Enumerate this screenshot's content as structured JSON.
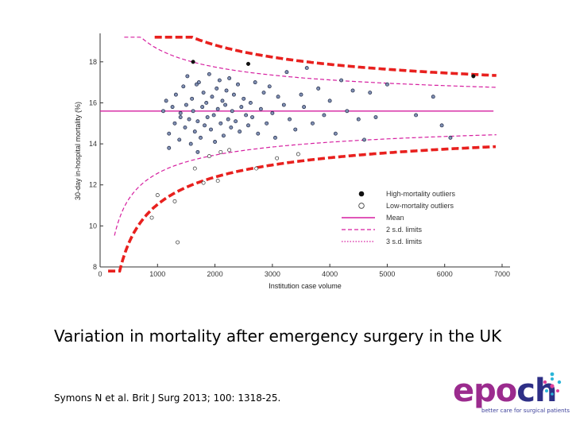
{
  "slide": {
    "title": "Variation in mortality after emergency surgery in the UK",
    "citation": "Symons N et al. Brit J Surg 2013; 100: 1318-25."
  },
  "logo": {
    "word_part1": "ep",
    "word_part2": "o",
    "word_part3": "ch",
    "tagline": "better care for surgical patients",
    "colors": {
      "purple": "#9b2b8e",
      "navy": "#2e2f86",
      "teal": "#2bb5d8",
      "pink": "#e0409a"
    }
  },
  "chart_data": {
    "type": "scatter",
    "title": "",
    "xlabel": "Institution case volume",
    "ylabel": "30-day in-hospital mortality (%)",
    "xlim": [
      0,
      7000
    ],
    "ylim": [
      8,
      19
    ],
    "xticks": [
      "0",
      "1000",
      "2000",
      "3000",
      "4000",
      "5000",
      "6000",
      "7000"
    ],
    "yticks": [
      "8",
      "10",
      "12",
      "14",
      "16",
      "18"
    ],
    "colors": {
      "mean": "#d61fa0",
      "limit": "#d61fa0",
      "overlay": "#e8201e",
      "point_fill": "#8090b4",
      "point_stroke": "#1f2844"
    },
    "mean": 15.6,
    "legend": {
      "position": "bottom-right",
      "items": [
        "High-mortality outliers",
        "Low-mortality outliers",
        "Mean",
        "2 s.d. limits",
        "3 s.d. limits"
      ]
    },
    "high_outliers": [
      {
        "x": 1620,
        "y": 18.0
      },
      {
        "x": 2580,
        "y": 17.9
      },
      {
        "x": 6500,
        "y": 17.3
      }
    ],
    "low_outliers": [
      {
        "x": 900,
        "y": 10.4
      },
      {
        "x": 1000,
        "y": 11.5
      },
      {
        "x": 1350,
        "y": 9.2
      },
      {
        "x": 1300,
        "y": 11.2
      },
      {
        "x": 1800,
        "y": 12.1
      },
      {
        "x": 1650,
        "y": 12.8
      },
      {
        "x": 2050,
        "y": 12.2
      },
      {
        "x": 2100,
        "y": 13.6
      },
      {
        "x": 2250,
        "y": 13.7
      },
      {
        "x": 2720,
        "y": 12.8
      },
      {
        "x": 3080,
        "y": 13.3
      },
      {
        "x": 3450,
        "y": 13.5
      },
      {
        "x": 1900,
        "y": 13.4
      }
    ],
    "points": [
      {
        "x": 1150,
        "y": 16.1
      },
      {
        "x": 1200,
        "y": 14.5
      },
      {
        "x": 1260,
        "y": 15.8
      },
      {
        "x": 1300,
        "y": 15.0
      },
      {
        "x": 1320,
        "y": 16.4
      },
      {
        "x": 1380,
        "y": 14.2
      },
      {
        "x": 1400,
        "y": 15.5
      },
      {
        "x": 1450,
        "y": 16.8
      },
      {
        "x": 1480,
        "y": 14.8
      },
      {
        "x": 1500,
        "y": 15.9
      },
      {
        "x": 1520,
        "y": 17.3
      },
      {
        "x": 1550,
        "y": 15.2
      },
      {
        "x": 1580,
        "y": 14.0
      },
      {
        "x": 1600,
        "y": 16.2
      },
      {
        "x": 1620,
        "y": 15.6
      },
      {
        "x": 1650,
        "y": 14.6
      },
      {
        "x": 1680,
        "y": 16.9
      },
      {
        "x": 1700,
        "y": 15.1
      },
      {
        "x": 1720,
        "y": 17.0
      },
      {
        "x": 1750,
        "y": 14.3
      },
      {
        "x": 1780,
        "y": 15.8
      },
      {
        "x": 1800,
        "y": 16.5
      },
      {
        "x": 1820,
        "y": 14.9
      },
      {
        "x": 1850,
        "y": 16.0
      },
      {
        "x": 1870,
        "y": 15.3
      },
      {
        "x": 1900,
        "y": 17.4
      },
      {
        "x": 1930,
        "y": 14.7
      },
      {
        "x": 1950,
        "y": 16.3
      },
      {
        "x": 1980,
        "y": 15.4
      },
      {
        "x": 2000,
        "y": 14.1
      },
      {
        "x": 2030,
        "y": 16.7
      },
      {
        "x": 2050,
        "y": 15.7
      },
      {
        "x": 2080,
        "y": 17.1
      },
      {
        "x": 2100,
        "y": 15.0
      },
      {
        "x": 2130,
        "y": 16.1
      },
      {
        "x": 2150,
        "y": 14.4
      },
      {
        "x": 2180,
        "y": 15.9
      },
      {
        "x": 2200,
        "y": 16.6
      },
      {
        "x": 2230,
        "y": 15.2
      },
      {
        "x": 2250,
        "y": 17.2
      },
      {
        "x": 2280,
        "y": 14.8
      },
      {
        "x": 2300,
        "y": 15.6
      },
      {
        "x": 2330,
        "y": 16.4
      },
      {
        "x": 2360,
        "y": 15.1
      },
      {
        "x": 2400,
        "y": 16.9
      },
      {
        "x": 2430,
        "y": 14.6
      },
      {
        "x": 2460,
        "y": 15.8
      },
      {
        "x": 2500,
        "y": 16.2
      },
      {
        "x": 2540,
        "y": 15.4
      },
      {
        "x": 2580,
        "y": 14.9
      },
      {
        "x": 2620,
        "y": 16.0
      },
      {
        "x": 2650,
        "y": 15.3
      },
      {
        "x": 2700,
        "y": 17.0
      },
      {
        "x": 2750,
        "y": 14.5
      },
      {
        "x": 2800,
        "y": 15.7
      },
      {
        "x": 2850,
        "y": 16.5
      },
      {
        "x": 2900,
        "y": 15.0
      },
      {
        "x": 2950,
        "y": 16.8
      },
      {
        "x": 3000,
        "y": 15.5
      },
      {
        "x": 3050,
        "y": 14.3
      },
      {
        "x": 3100,
        "y": 16.3
      },
      {
        "x": 3200,
        "y": 15.9
      },
      {
        "x": 3250,
        "y": 17.5
      },
      {
        "x": 3300,
        "y": 15.2
      },
      {
        "x": 3400,
        "y": 14.7
      },
      {
        "x": 3500,
        "y": 16.4
      },
      {
        "x": 3550,
        "y": 15.8
      },
      {
        "x": 3600,
        "y": 17.7
      },
      {
        "x": 3700,
        "y": 15.0
      },
      {
        "x": 3800,
        "y": 16.7
      },
      {
        "x": 3900,
        "y": 15.4
      },
      {
        "x": 4000,
        "y": 16.1
      },
      {
        "x": 4100,
        "y": 14.5
      },
      {
        "x": 4200,
        "y": 17.1
      },
      {
        "x": 4300,
        "y": 15.6
      },
      {
        "x": 4400,
        "y": 16.6
      },
      {
        "x": 4500,
        "y": 15.2
      },
      {
        "x": 4600,
        "y": 14.2
      },
      {
        "x": 4700,
        "y": 16.5
      },
      {
        "x": 4800,
        "y": 15.3
      },
      {
        "x": 5000,
        "y": 16.9
      },
      {
        "x": 5500,
        "y": 15.4
      },
      {
        "x": 5800,
        "y": 16.3
      },
      {
        "x": 5950,
        "y": 14.9
      },
      {
        "x": 6100,
        "y": 14.3
      },
      {
        "x": 1400,
        "y": 15.3
      },
      {
        "x": 1200,
        "y": 13.8
      },
      {
        "x": 1100,
        "y": 15.6
      },
      {
        "x": 1700,
        "y": 13.6
      }
    ]
  }
}
